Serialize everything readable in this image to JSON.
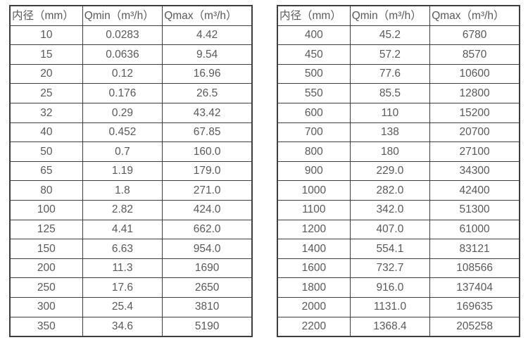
{
  "colors": {
    "background": "#ffffff",
    "border": "#3e3e3e",
    "text": "#595959"
  },
  "tables": [
    {
      "name": "flow-table-small-diameters",
      "headers": [
        "内径（mm）",
        "Qmin（m³/h）",
        "Qmax（m³/h）"
      ],
      "rows": [
        [
          "10",
          "0.0283",
          "4.42"
        ],
        [
          "15",
          "0.0636",
          "9.54"
        ],
        [
          "20",
          "0.12",
          "16.96"
        ],
        [
          "25",
          "0.176",
          "26.5"
        ],
        [
          "32",
          "0.29",
          "43.42"
        ],
        [
          "40",
          "0.452",
          "67.85"
        ],
        [
          "50",
          "0.7",
          "160.0"
        ],
        [
          "65",
          "1.19",
          "179.0"
        ],
        [
          "80",
          "1.8",
          "271.0"
        ],
        [
          "100",
          "2.82",
          "424.0"
        ],
        [
          "125",
          "4.41",
          "662.0"
        ],
        [
          "150",
          "6.63",
          "954.0"
        ],
        [
          "200",
          "11.3",
          "1690"
        ],
        [
          "250",
          "17.6",
          "2650"
        ],
        [
          "300",
          "25.4",
          "3810"
        ],
        [
          "350",
          "34.6",
          "5190"
        ]
      ]
    },
    {
      "name": "flow-table-large-diameters",
      "headers": [
        "内径（mm）",
        "Qmin（m³/h）",
        "Qmax（m³/h）"
      ],
      "rows": [
        [
          "400",
          "45.2",
          "6780"
        ],
        [
          "450",
          "57.2",
          "8570"
        ],
        [
          "500",
          "77.6",
          "10600"
        ],
        [
          "550",
          "85.5",
          "12800"
        ],
        [
          "600",
          "110",
          "15200"
        ],
        [
          "700",
          "138",
          "20700"
        ],
        [
          "800",
          "180",
          "27100"
        ],
        [
          "900",
          "229.0",
          "34300"
        ],
        [
          "1000",
          "282.0",
          "42400"
        ],
        [
          "1100",
          "342.0",
          "51300"
        ],
        [
          "1200",
          "407.0",
          "61000"
        ],
        [
          "1400",
          "554.1",
          "83121"
        ],
        [
          "1600",
          "732.7",
          "108566"
        ],
        [
          "1800",
          "916.0",
          "137404"
        ],
        [
          "2000",
          "1131.0",
          "169635"
        ],
        [
          "2200",
          "1368.4",
          "205258"
        ]
      ]
    }
  ]
}
